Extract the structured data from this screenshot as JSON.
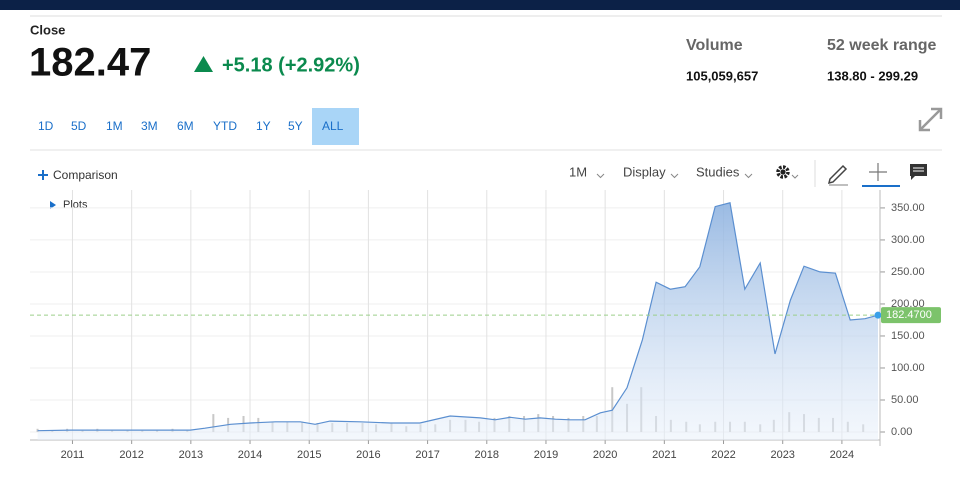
{
  "quote": {
    "label": "Close",
    "price": "182.47",
    "change": "+5.18 (+2.92%)"
  },
  "stats": [
    {
      "label": "Volume",
      "value": "105,059,657"
    },
    {
      "label": "52 week range",
      "value": "138.80 - 299.29"
    }
  ],
  "ranges": [
    "1D",
    "5D",
    "1M",
    "3M",
    "6M",
    "YTD",
    "1Y",
    "5Y",
    "ALL"
  ],
  "selected_range": "ALL",
  "toolbar": {
    "comparison": "Comparison",
    "interval": "1M",
    "display": "Display",
    "studies": "Studies",
    "plots": "Plots"
  },
  "chart_data": {
    "type": "area",
    "color": "#5b8fd0",
    "x": [
      2010.41,
      2010.97,
      2011.98,
      2012.99,
      2013.24,
      2013.67,
      2014.0,
      2014.43,
      2014.85,
      2015.1,
      2015.35,
      2015.86,
      2016.37,
      2016.87,
      2017.38,
      2017.89,
      2018.14,
      2018.4,
      2018.65,
      2018.9,
      2019.16,
      2019.41,
      2019.66,
      2019.92,
      2020.12,
      2020.37,
      2020.63,
      2020.86,
      2021.1,
      2021.35,
      2021.6,
      2021.86,
      2022.11,
      2022.36,
      2022.62,
      2022.87,
      2023.13,
      2023.36,
      2023.63,
      2023.89,
      2024.14,
      2024.39,
      2024.61
    ],
    "values": [
      2,
      3,
      3,
      3,
      6,
      12,
      14,
      16,
      16,
      12,
      17,
      16,
      14,
      14,
      25,
      22,
      19,
      23,
      20,
      22,
      20,
      19,
      19,
      30,
      34,
      69,
      144,
      234,
      223,
      227,
      258,
      352,
      358,
      223,
      264,
      122,
      206,
      259,
      250,
      248,
      175,
      177,
      182.47
    ],
    "last": {
      "value": 182.47,
      "label": "182.4700",
      "color": "#7cc36b"
    },
    "volume": {
      "color": "#c8c8c8",
      "x": [
        2010.41,
        2010.66,
        2010.91,
        2011.17,
        2011.42,
        2011.67,
        2011.93,
        2012.18,
        2012.43,
        2012.69,
        2012.94,
        2013.38,
        2013.63,
        2013.89,
        2014.14,
        2014.38,
        2014.63,
        2014.88,
        2015.14,
        2015.39,
        2015.64,
        2015.9,
        2016.13,
        2016.39,
        2016.64,
        2016.88,
        2017.13,
        2017.38,
        2017.64,
        2017.87,
        2018.13,
        2018.38,
        2018.63,
        2018.87,
        2019.12,
        2019.38,
        2019.63,
        2019.86,
        2020.12,
        2020.37,
        2020.61,
        2020.86,
        2021.11,
        2021.37,
        2021.6,
        2021.86,
        2022.11,
        2022.36,
        2022.62,
        2022.85,
        2023.11,
        2023.36,
        2023.61,
        2023.85,
        2024.1,
        2024.36
      ],
      "values": [
        5,
        3,
        5,
        3,
        5,
        3,
        3,
        3,
        3,
        5,
        3,
        28,
        22,
        25,
        22,
        16,
        16,
        16,
        14,
        14,
        14,
        14,
        12,
        14,
        9,
        12,
        12,
        19,
        19,
        16,
        22,
        25,
        25,
        28,
        25,
        22,
        25,
        25,
        70,
        44,
        70,
        25,
        19,
        16,
        12,
        16,
        16,
        16,
        12,
        19,
        31,
        28,
        22,
        22,
        16,
        12
      ]
    },
    "xlim": [
      2010.35,
      2024.61
    ],
    "xticks": [
      2011,
      2012,
      2013,
      2014,
      2015,
      2016,
      2017,
      2018,
      2019,
      2020,
      2021,
      2022,
      2023,
      2024
    ],
    "ylim": [
      -12.5,
      378
    ],
    "yticks": [
      {
        "value": 0,
        "label": "0.00"
      },
      {
        "value": 50,
        "label": "50.00"
      },
      {
        "value": 100,
        "label": "100.00"
      },
      {
        "value": 150,
        "label": "150.00"
      },
      {
        "value": 200,
        "label": "200.00"
      },
      {
        "value": 250,
        "label": "250.00"
      },
      {
        "value": 300,
        "label": "300.00"
      },
      {
        "value": 350,
        "label": "350.00"
      }
    ],
    "grid": true
  }
}
